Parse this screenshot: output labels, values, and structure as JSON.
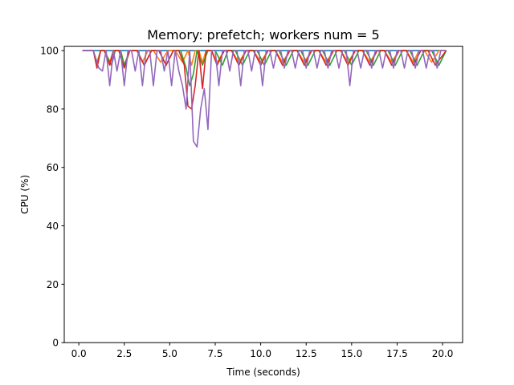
{
  "chart_data": {
    "type": "line",
    "title": "Memory: prefetch; workers num = 5",
    "xlabel": "Time (seconds)",
    "ylabel": "CPU (%)",
    "xlim": [
      -0.8,
      21.1
    ],
    "ylim": [
      0,
      101.5
    ],
    "xticks": [
      0.0,
      2.5,
      5.0,
      7.5,
      10.0,
      12.5,
      15.0,
      17.5,
      20.0
    ],
    "xtick_labels": [
      "0.0",
      "2.5",
      "5.0",
      "7.5",
      "10.0",
      "12.5",
      "15.0",
      "17.5",
      "20.0"
    ],
    "yticks": [
      0,
      20,
      40,
      60,
      80,
      100
    ],
    "ytick_labels": [
      "0",
      "20",
      "40",
      "60",
      "80",
      "100"
    ],
    "grid": false,
    "series": [
      {
        "color": "#1f77b4",
        "x": [
          0.2,
          0.8,
          1.0,
          1.6,
          2.0,
          3.5,
          4.0,
          5.0,
          5.4,
          6.0,
          6.5,
          7.5,
          8.0,
          10.0,
          12.0,
          14.0,
          16.0,
          18.0,
          20.2
        ],
        "y": [
          100,
          100,
          100,
          100,
          100,
          100,
          100,
          100,
          100,
          100,
          100,
          100,
          100,
          100,
          100,
          100,
          100,
          100,
          100
        ]
      },
      {
        "color": "#ff7f0e",
        "x": [
          0.2,
          0.8,
          1.0,
          1.2,
          1.4,
          1.7,
          1.9,
          2.3,
          2.5,
          2.8,
          3.2,
          3.5,
          3.8,
          4.1,
          4.5,
          4.9,
          5.3,
          5.7,
          6.0,
          6.2,
          6.4,
          6.6,
          6.8,
          7.0,
          7.3,
          7.6,
          8.0,
          8.4,
          8.8,
          9.2,
          9.6,
          10.0,
          10.4,
          10.8,
          11.2,
          11.6,
          12.0,
          12.4,
          12.8,
          13.2,
          13.6,
          14.0,
          14.4,
          14.8,
          15.2,
          15.6,
          16.0,
          16.4,
          16.8,
          17.2,
          17.6,
          18.0,
          18.4,
          18.7,
          19.0,
          19.4,
          19.8,
          20.2
        ],
        "y": [
          100,
          100,
          96,
          100,
          100,
          96,
          100,
          100,
          95,
          100,
          100,
          96,
          100,
          100,
          96,
          100,
          100,
          96,
          100,
          95,
          100,
          100,
          96,
          100,
          100,
          96,
          100,
          100,
          96,
          100,
          100,
          96,
          100,
          100,
          96,
          100,
          100,
          96,
          100,
          100,
          96,
          100,
          100,
          96,
          100,
          100,
          96,
          100,
          100,
          96,
          100,
          100,
          96,
          100,
          100,
          96,
          100,
          100
        ]
      },
      {
        "color": "#2ca02c",
        "x": [
          0.2,
          0.8,
          1.0,
          1.2,
          1.4,
          1.8,
          2.0,
          2.3,
          2.5,
          2.8,
          3.2,
          3.6,
          4.0,
          4.4,
          4.8,
          5.2,
          5.6,
          5.9,
          6.1,
          6.3,
          6.5,
          6.8,
          7.1,
          7.5,
          7.9,
          8.2,
          8.6,
          9.0,
          9.4,
          9.8,
          10.2,
          10.6,
          11.0,
          11.4,
          11.8,
          12.2,
          12.6,
          13.0,
          13.4,
          13.8,
          14.2,
          14.6,
          15.0,
          15.4,
          15.8,
          16.2,
          16.6,
          17.0,
          17.4,
          17.8,
          18.2,
          18.6,
          19.0,
          19.4,
          19.8,
          20.2
        ],
        "y": [
          100,
          100,
          95,
          100,
          100,
          95,
          100,
          100,
          95,
          100,
          100,
          95,
          100,
          100,
          95,
          100,
          100,
          94,
          88,
          92,
          100,
          95,
          100,
          100,
          95,
          100,
          100,
          95,
          100,
          100,
          95,
          100,
          100,
          95,
          100,
          100,
          95,
          100,
          100,
          95,
          100,
          100,
          95,
          100,
          100,
          95,
          100,
          100,
          95,
          100,
          100,
          95,
          100,
          100,
          95,
          100
        ]
      },
      {
        "color": "#d62728",
        "x": [
          0.2,
          0.8,
          1.0,
          1.2,
          1.4,
          1.7,
          1.9,
          2.2,
          2.5,
          2.8,
          3.2,
          3.6,
          4.0,
          4.4,
          4.8,
          5.2,
          5.5,
          5.8,
          6.0,
          6.2,
          6.4,
          6.6,
          6.8,
          7.0,
          7.3,
          7.6,
          8.0,
          8.4,
          8.8,
          9.2,
          9.6,
          10.0,
          10.4,
          10.8,
          11.2,
          11.6,
          12.0,
          12.4,
          12.8,
          13.2,
          13.6,
          14.0,
          14.4,
          14.8,
          15.2,
          15.6,
          16.0,
          16.4,
          16.8,
          17.2,
          17.6,
          18.0,
          18.4,
          18.8,
          19.2,
          19.6,
          20.2
        ],
        "y": [
          100,
          100,
          94,
          100,
          100,
          95,
          100,
          100,
          94,
          100,
          100,
          95,
          100,
          100,
          95,
          100,
          100,
          95,
          81,
          80,
          88,
          100,
          87,
          100,
          100,
          95,
          100,
          100,
          95,
          100,
          100,
          95,
          100,
          100,
          95,
          100,
          100,
          95,
          100,
          100,
          95,
          100,
          100,
          95,
          100,
          100,
          95,
          100,
          100,
          95,
          100,
          100,
          95,
          100,
          100,
          95,
          100
        ]
      },
      {
        "color": "#9467bd",
        "x": [
          0.2,
          0.8,
          1.1,
          1.3,
          1.5,
          1.7,
          1.9,
          2.1,
          2.3,
          2.5,
          2.7,
          2.9,
          3.1,
          3.3,
          3.5,
          3.7,
          3.9,
          4.1,
          4.3,
          4.5,
          4.7,
          4.9,
          5.1,
          5.3,
          5.5,
          5.7,
          5.9,
          6.1,
          6.3,
          6.5,
          6.7,
          6.9,
          7.1,
          7.3,
          7.5,
          7.7,
          7.9,
          8.1,
          8.3,
          8.5,
          8.7,
          8.9,
          9.1,
          9.3,
          9.5,
          9.7,
          9.9,
          10.1,
          10.3,
          10.5,
          10.7,
          10.9,
          11.1,
          11.3,
          11.5,
          11.7,
          11.9,
          12.1,
          12.3,
          12.5,
          12.7,
          12.9,
          13.1,
          13.3,
          13.5,
          13.7,
          13.9,
          14.1,
          14.3,
          14.5,
          14.7,
          14.9,
          15.1,
          15.3,
          15.5,
          15.7,
          15.9,
          16.1,
          16.3,
          16.5,
          16.7,
          16.9,
          17.1,
          17.3,
          17.5,
          17.7,
          17.9,
          18.1,
          18.3,
          18.5,
          18.7,
          18.9,
          19.1,
          19.3,
          19.5,
          19.7,
          19.9,
          20.2
        ],
        "y": [
          100,
          100,
          94,
          93,
          100,
          88,
          100,
          93,
          100,
          88,
          100,
          100,
          93,
          100,
          88,
          100,
          100,
          88,
          100,
          100,
          93,
          100,
          88,
          100,
          93,
          88,
          80,
          100,
          69,
          67,
          80,
          87,
          73,
          100,
          100,
          88,
          100,
          100,
          93,
          100,
          100,
          88,
          100,
          100,
          93,
          100,
          100,
          88,
          100,
          100,
          94,
          100,
          100,
          94,
          100,
          100,
          94,
          100,
          100,
          94,
          100,
          100,
          94,
          100,
          100,
          94,
          100,
          100,
          94,
          100,
          100,
          88,
          100,
          100,
          94,
          100,
          100,
          94,
          100,
          100,
          94,
          100,
          100,
          94,
          100,
          100,
          94,
          100,
          100,
          94,
          100,
          100,
          94,
          100,
          100,
          94,
          100,
          100
        ]
      }
    ]
  }
}
